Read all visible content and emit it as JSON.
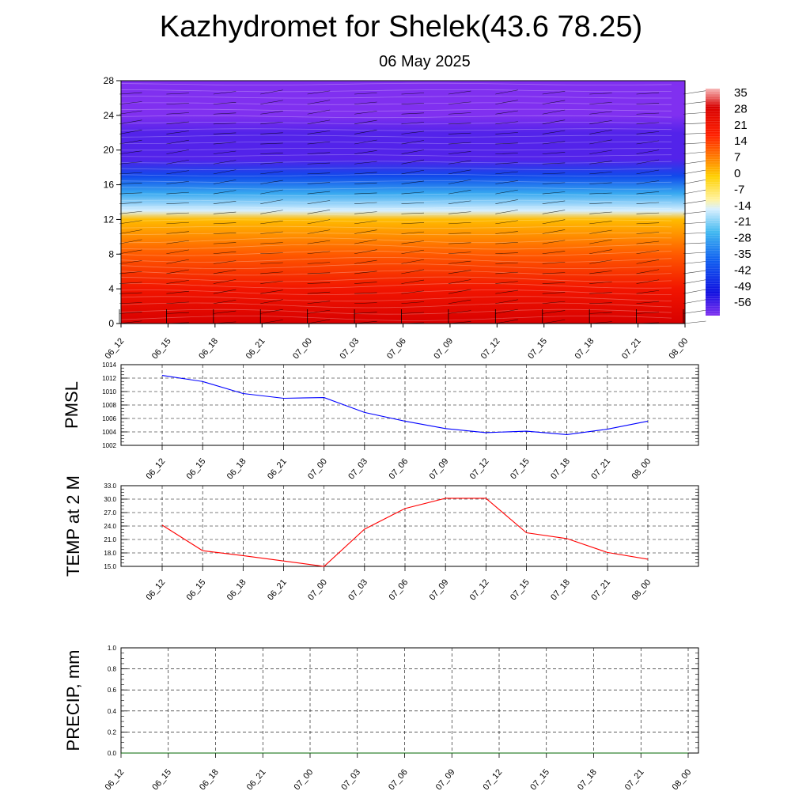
{
  "title": "Kazhydromet for Shelek(43.6 78.25)",
  "subtitle": "06 May 2025",
  "time_labels": [
    "06_12",
    "06_15",
    "06_18",
    "06_21",
    "07_00",
    "07_03",
    "07_06",
    "07_09",
    "07_12",
    "07_15",
    "07_18",
    "07_21",
    "08_00"
  ],
  "chart_data": [
    {
      "type": "heatmap",
      "name": "temperature-cross-section",
      "ylim": [
        0,
        28
      ],
      "y_ticks": [
        0,
        4,
        8,
        12,
        16,
        20,
        24,
        28
      ],
      "x_ticks": [
        "06_12",
        "06_15",
        "06_18",
        "06_21",
        "07_00",
        "07_03",
        "07_06",
        "07_09",
        "07_12",
        "07_15",
        "07_18",
        "07_21",
        "08_00"
      ],
      "colorbar": {
        "labels": [
          "35",
          "28",
          "21",
          "14",
          "7",
          "0",
          "-7",
          "-14",
          "-21",
          "-28",
          "-35",
          "-42",
          "-49",
          "-56"
        ],
        "stops": [
          {
            "value": 38,
            "color": "#f7b8b8"
          },
          {
            "value": 30,
            "color": "#d80000"
          },
          {
            "value": 18,
            "color": "#ff2000"
          },
          {
            "value": 8,
            "color": "#ff8000"
          },
          {
            "value": 0,
            "color": "#ffd000"
          },
          {
            "value": -10,
            "color": "#fff3a0"
          },
          {
            "value": -14,
            "color": "#d8f0ff"
          },
          {
            "value": -24,
            "color": "#40b8f0"
          },
          {
            "value": -36,
            "color": "#1060f0"
          },
          {
            "value": -50,
            "color": "#1010e0"
          },
          {
            "value": -60,
            "color": "#8030f0"
          }
        ]
      },
      "profile": [
        {
          "height": 0,
          "temp": 30
        },
        {
          "height": 2,
          "temp": 26
        },
        {
          "height": 4,
          "temp": 22
        },
        {
          "height": 8,
          "temp": 12
        },
        {
          "height": 12,
          "temp": 2
        },
        {
          "height": 13,
          "temp": -14
        },
        {
          "height": 15,
          "temp": -26
        },
        {
          "height": 17,
          "temp": -40
        },
        {
          "height": 19,
          "temp": -56
        },
        {
          "height": 22,
          "temp": -56
        },
        {
          "height": 24,
          "temp": -60
        },
        {
          "height": 28,
          "temp": -60
        }
      ]
    },
    {
      "type": "line",
      "name": "pmsl",
      "ylabel": "PMSL",
      "ylim": [
        1002,
        1014
      ],
      "y_ticks": [
        "1002",
        "1004",
        "1006",
        "1008",
        "1010",
        "1012",
        "1014"
      ],
      "x": [
        "06_12",
        "06_15",
        "06_18",
        "06_21",
        "07_00",
        "07_03",
        "07_06",
        "07_09",
        "07_12",
        "07_15",
        "07_18",
        "07_21",
        "08_00"
      ],
      "values": [
        1012.4,
        1011.5,
        1009.7,
        1009.0,
        1009.1,
        1006.9,
        1005.6,
        1004.5,
        1003.9,
        1004.1,
        1003.6,
        1004.4,
        1005.6
      ],
      "color": "#0000ff",
      "grid": true
    },
    {
      "type": "line",
      "name": "temp-2m",
      "ylabel": "TEMP at 2 M",
      "ylim": [
        15,
        33
      ],
      "y_ticks": [
        "15.0",
        "18.0",
        "21.0",
        "24.0",
        "27.0",
        "30.0",
        "33.0"
      ],
      "x": [
        "06_12",
        "06_15",
        "06_18",
        "06_21",
        "07_00",
        "07_03",
        "07_06",
        "07_09",
        "07_12",
        "07_15",
        "07_18",
        "07_21",
        "08_00"
      ],
      "values": [
        24.2,
        18.5,
        17.4,
        16.2,
        15.0,
        23.3,
        27.9,
        30.2,
        30.2,
        22.5,
        21.2,
        18.1,
        16.6
      ],
      "color": "#ff0000",
      "grid": true
    },
    {
      "type": "line",
      "name": "precip",
      "ylabel": "PRECIP, mm",
      "ylim": [
        0,
        1
      ],
      "y_ticks": [
        "0.0",
        "0.2",
        "0.4",
        "0.6",
        "0.8",
        "1.0"
      ],
      "x": [
        "06_12",
        "06_15",
        "06_18",
        "06_21",
        "07_00",
        "07_03",
        "07_06",
        "07_09",
        "07_12",
        "07_15",
        "07_18",
        "07_21",
        "08_00"
      ],
      "values": [
        0,
        0,
        0,
        0,
        0,
        0,
        0,
        0,
        0,
        0,
        0,
        0,
        0
      ],
      "color": "#006400",
      "grid": true
    }
  ]
}
